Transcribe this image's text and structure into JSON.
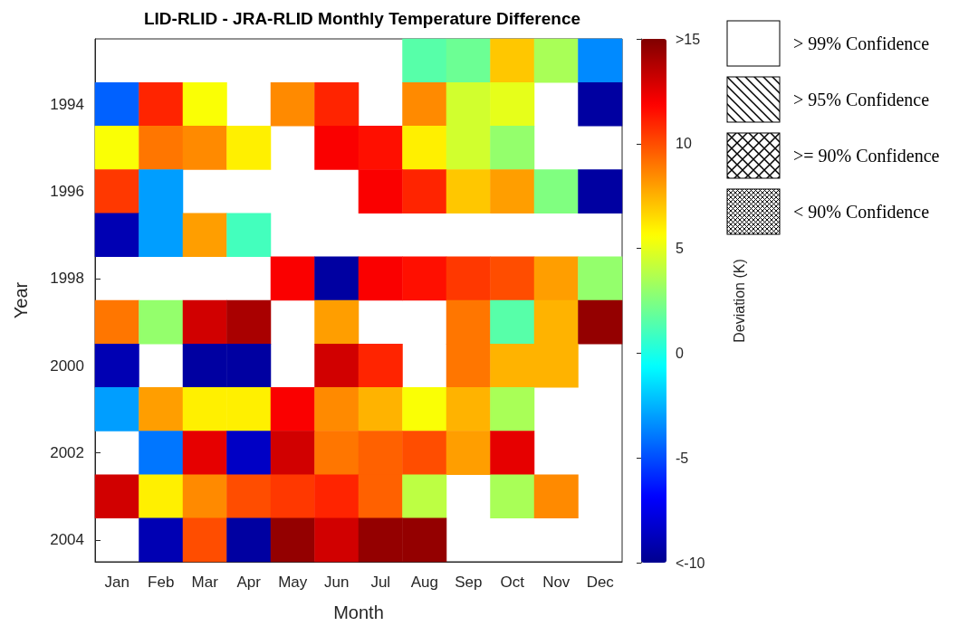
{
  "chart_data": {
    "type": "heatmap",
    "title": "LID-RLID - JRA-RLID Monthly Temperature Difference",
    "xlabel": "Month",
    "ylabel": "Year",
    "clabel": "Deviation (K)",
    "categories": [
      "Jan",
      "Feb",
      "Mar",
      "Apr",
      "May",
      "Jun",
      "Jul",
      "Aug",
      "Sep",
      "Oct",
      "Nov",
      "Dec"
    ],
    "y_categories": [
      null,
      "1994",
      null,
      "1996",
      null,
      "1998",
      null,
      "2000",
      null,
      "2002",
      null,
      "2004"
    ],
    "cells": [
      [
        null,
        null,
        null,
        null,
        null,
        null,
        null,
        1.5,
        2,
        7,
        3.5,
        -3.5
      ],
      [
        -4.5,
        11,
        5.5,
        null,
        8.5,
        11,
        null,
        8.5,
        4.5,
        5,
        null,
        -9.5
      ],
      [
        5.5,
        9,
        8.5,
        6,
        null,
        12,
        11.5,
        6,
        4.5,
        3,
        null,
        null
      ],
      [
        10.5,
        -3,
        null,
        null,
        null,
        null,
        12,
        11,
        7,
        8,
        2.5,
        -9.5
      ],
      [
        -9,
        -3,
        8,
        1,
        null,
        null,
        null,
        null,
        null,
        null,
        null,
        null
      ],
      [
        null,
        null,
        null,
        null,
        12,
        -9.5,
        12,
        11.5,
        10.5,
        10,
        8,
        3
      ],
      [
        9,
        3,
        13,
        14,
        null,
        8,
        null,
        null,
        9,
        1.5,
        7.5,
        14.5
      ],
      [
        -9,
        null,
        -9.5,
        -9.5,
        null,
        13,
        11,
        null,
        9,
        7.5,
        7.5,
        null
      ],
      [
        -3,
        8,
        6,
        6,
        12,
        8.5,
        7.5,
        5.5,
        7.5,
        3.5,
        null,
        null
      ],
      [
        null,
        -4,
        12.5,
        -8.5,
        13,
        9,
        9.5,
        10,
        8,
        12.5,
        null,
        null
      ],
      [
        13,
        6,
        8.5,
        10,
        10.5,
        11,
        9.5,
        4,
        null,
        3.5,
        8.5,
        null
      ],
      [
        null,
        -9,
        10,
        -9.5,
        14.5,
        13,
        14.5,
        14.5,
        null,
        null,
        null,
        null
      ]
    ],
    "clim": [
      -10,
      15
    ],
    "cticks": [
      {
        "value": -10,
        "label": "<-10"
      },
      -5,
      0,
      5,
      10,
      {
        "value": 15,
        "label": ">15"
      }
    ],
    "annotations": [
      "> 99% Confidence",
      "> 95% Confidence",
      ">= 90% Confidence",
      "< 90% Confidence"
    ]
  }
}
